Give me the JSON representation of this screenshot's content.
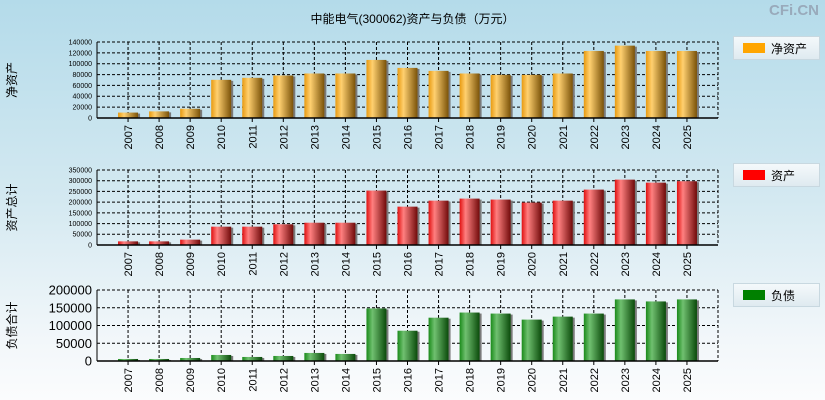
{
  "title": "中能电气(300062)资产与负债（万元）",
  "watermark": "CFi.CN",
  "chart_data": [
    {
      "type": "bar",
      "ylabel": "净资产",
      "legend": "净资产",
      "color": "#ffa500",
      "ylim": [
        0,
        140000
      ],
      "yticks": [
        0,
        20000,
        40000,
        60000,
        80000,
        100000,
        120000,
        140000
      ],
      "categories": [
        "2007",
        "2008",
        "2009",
        "2010",
        "2011",
        "2012",
        "2013",
        "2014",
        "2015",
        "2016",
        "2017",
        "2018",
        "2019",
        "2020",
        "2021",
        "2022",
        "2023",
        "2024",
        "2025"
      ],
      "values": [
        10000,
        12200,
        17000,
        70300,
        74000,
        78300,
        82000,
        82000,
        107000,
        92300,
        86800,
        82000,
        79500,
        79500,
        82000,
        123500,
        133300,
        123500,
        123500
      ]
    },
    {
      "type": "bar",
      "ylabel": "资产总计",
      "legend": "资产",
      "color": "#ff0000",
      "ylim": [
        0,
        350000
      ],
      "yticks": [
        0,
        50000,
        100000,
        150000,
        200000,
        250000,
        300000,
        350000
      ],
      "categories": [
        "2007",
        "2008",
        "2009",
        "2010",
        "2011",
        "2012",
        "2013",
        "2014",
        "2015",
        "2016",
        "2017",
        "2018",
        "2019",
        "2020",
        "2021",
        "2022",
        "2023",
        "2024",
        "2025"
      ],
      "values": [
        17000,
        17000,
        25000,
        85600,
        85600,
        96600,
        104000,
        104000,
        254000,
        179000,
        207000,
        216500,
        212000,
        198000,
        207000,
        258500,
        305000,
        291000,
        297500
      ]
    },
    {
      "type": "bar",
      "ylabel": "负债合计",
      "legend": "负债",
      "color": "#008000",
      "ylim": [
        0,
        200000
      ],
      "yticks": [
        0,
        50000,
        100000,
        150000,
        200000
      ],
      "categories": [
        "2007",
        "2008",
        "2009",
        "2010",
        "2011",
        "2012",
        "2013",
        "2014",
        "2015",
        "2016",
        "2017",
        "2018",
        "2019",
        "2020",
        "2021",
        "2022",
        "2023",
        "2024",
        "2025"
      ],
      "values": [
        5700,
        5700,
        8500,
        17000,
        11400,
        14200,
        22700,
        19900,
        148000,
        85300,
        122000,
        136500,
        133600,
        116600,
        125000,
        133600,
        173500,
        167800,
        173500
      ]
    }
  ]
}
